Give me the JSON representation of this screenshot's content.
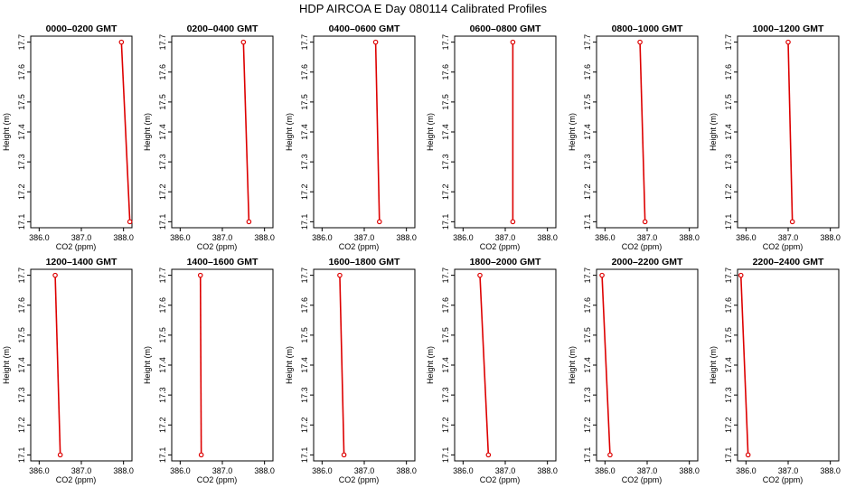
{
  "title": "HDP AIRCOA E  Day 080114  Calibrated Profiles",
  "colors": {
    "profile": "#dd0000",
    "axis": "#000000",
    "background": "#ffffff"
  },
  "chart_data": [
    {
      "type": "line",
      "title": "0000–0200 GMT",
      "xlabel": "CO2 (ppm)",
      "ylabel": "Height (m)",
      "xlim": [
        385.8,
        388.2
      ],
      "ylim": [
        17.08,
        17.72
      ],
      "xticks": [
        386.0,
        387.0,
        388.0
      ],
      "xtick_labels": [
        "386.0",
        "387.0",
        "388.0"
      ],
      "yticks": [
        17.1,
        17.2,
        17.3,
        17.4,
        17.5,
        17.6,
        17.7
      ],
      "ytick_labels": [
        "17.1",
        "17.2",
        "17.3",
        "17.4",
        "17.5",
        "17.6",
        "17.7"
      ],
      "grid": false,
      "series": [
        {
          "x": [
            387.95,
            388.15
          ],
          "y": [
            17.7,
            17.1
          ]
        }
      ]
    },
    {
      "type": "line",
      "title": "0200–0400 GMT",
      "xlabel": "CO2 (ppm)",
      "ylabel": "Height (m)",
      "xlim": [
        385.8,
        388.2
      ],
      "ylim": [
        17.08,
        17.72
      ],
      "xticks": [
        386.0,
        387.0,
        388.0
      ],
      "xtick_labels": [
        "386.0",
        "387.0",
        "388.0"
      ],
      "yticks": [
        17.1,
        17.2,
        17.3,
        17.4,
        17.5,
        17.6,
        17.7
      ],
      "ytick_labels": [
        "17.1",
        "17.2",
        "17.3",
        "17.4",
        "17.5",
        "17.6",
        "17.7"
      ],
      "grid": false,
      "series": [
        {
          "x": [
            387.5,
            387.63
          ],
          "y": [
            17.7,
            17.1
          ]
        }
      ]
    },
    {
      "type": "line",
      "title": "0400–0600 GMT",
      "xlabel": "CO2 (ppm)",
      "ylabel": "Height (m)",
      "xlim": [
        385.8,
        388.2
      ],
      "ylim": [
        17.08,
        17.72
      ],
      "xticks": [
        386.0,
        387.0,
        388.0
      ],
      "xtick_labels": [
        "386.0",
        "387.0",
        "388.0"
      ],
      "yticks": [
        17.1,
        17.2,
        17.3,
        17.4,
        17.5,
        17.6,
        17.7
      ],
      "ytick_labels": [
        "17.1",
        "17.2",
        "17.3",
        "17.4",
        "17.5",
        "17.6",
        "17.7"
      ],
      "grid": false,
      "series": [
        {
          "x": [
            387.27,
            387.36
          ],
          "y": [
            17.7,
            17.1
          ]
        }
      ]
    },
    {
      "type": "line",
      "title": "0600–0800 GMT",
      "xlabel": "CO2 (ppm)",
      "ylabel": "Height (m)",
      "xlim": [
        385.8,
        388.2
      ],
      "ylim": [
        17.08,
        17.72
      ],
      "xticks": [
        386.0,
        387.0,
        388.0
      ],
      "xtick_labels": [
        "386.0",
        "387.0",
        "388.0"
      ],
      "yticks": [
        17.1,
        17.2,
        17.3,
        17.4,
        17.5,
        17.6,
        17.7
      ],
      "ytick_labels": [
        "17.1",
        "17.2",
        "17.3",
        "17.4",
        "17.5",
        "17.6",
        "17.7"
      ],
      "grid": false,
      "series": [
        {
          "x": [
            387.18,
            387.18
          ],
          "y": [
            17.7,
            17.1
          ]
        }
      ]
    },
    {
      "type": "line",
      "title": "0800–1000 GMT",
      "xlabel": "CO2 (ppm)",
      "ylabel": "Height (m)",
      "xlim": [
        385.8,
        388.2
      ],
      "ylim": [
        17.08,
        17.72
      ],
      "xticks": [
        386.0,
        387.0,
        388.0
      ],
      "xtick_labels": [
        "386.0",
        "387.0",
        "388.0"
      ],
      "yticks": [
        17.1,
        17.2,
        17.3,
        17.4,
        17.5,
        17.6,
        17.7
      ],
      "ytick_labels": [
        "17.1",
        "17.2",
        "17.3",
        "17.4",
        "17.5",
        "17.6",
        "17.7"
      ],
      "grid": false,
      "series": [
        {
          "x": [
            386.83,
            386.95
          ],
          "y": [
            17.7,
            17.1
          ]
        }
      ]
    },
    {
      "type": "line",
      "title": "1000–1200 GMT",
      "xlabel": "CO2 (ppm)",
      "ylabel": "Height (m)",
      "xlim": [
        385.8,
        388.2
      ],
      "ylim": [
        17.08,
        17.72
      ],
      "xticks": [
        386.0,
        387.0,
        388.0
      ],
      "xtick_labels": [
        "386.0",
        "387.0",
        "388.0"
      ],
      "yticks": [
        17.1,
        17.2,
        17.3,
        17.4,
        17.5,
        17.6,
        17.7
      ],
      "ytick_labels": [
        "17.1",
        "17.2",
        "17.3",
        "17.4",
        "17.5",
        "17.6",
        "17.7"
      ],
      "grid": false,
      "series": [
        {
          "x": [
            387.0,
            387.1
          ],
          "y": [
            17.7,
            17.1
          ]
        }
      ]
    },
    {
      "type": "line",
      "title": "1200–1400 GMT",
      "xlabel": "CO2 (ppm)",
      "ylabel": "Height (m)",
      "xlim": [
        385.8,
        388.2
      ],
      "ylim": [
        17.08,
        17.72
      ],
      "xticks": [
        386.0,
        387.0,
        388.0
      ],
      "xtick_labels": [
        "386.0",
        "387.0",
        "388.0"
      ],
      "yticks": [
        17.1,
        17.2,
        17.3,
        17.4,
        17.5,
        17.6,
        17.7
      ],
      "ytick_labels": [
        "17.1",
        "17.2",
        "17.3",
        "17.4",
        "17.5",
        "17.6",
        "17.7"
      ],
      "grid": false,
      "series": [
        {
          "x": [
            386.38,
            386.5
          ],
          "y": [
            17.7,
            17.1
          ]
        }
      ]
    },
    {
      "type": "line",
      "title": "1400–1600 GMT",
      "xlabel": "CO2 (ppm)",
      "ylabel": "Height (m)",
      "xlim": [
        385.8,
        388.2
      ],
      "ylim": [
        17.08,
        17.72
      ],
      "xticks": [
        386.0,
        387.0,
        388.0
      ],
      "xtick_labels": [
        "386.0",
        "387.0",
        "388.0"
      ],
      "yticks": [
        17.1,
        17.2,
        17.3,
        17.4,
        17.5,
        17.6,
        17.7
      ],
      "ytick_labels": [
        "17.1",
        "17.2",
        "17.3",
        "17.4",
        "17.5",
        "17.6",
        "17.7"
      ],
      "grid": false,
      "series": [
        {
          "x": [
            386.48,
            386.5
          ],
          "y": [
            17.7,
            17.1
          ]
        }
      ]
    },
    {
      "type": "line",
      "title": "1600–1800 GMT",
      "xlabel": "CO2 (ppm)",
      "ylabel": "Height (m)",
      "xlim": [
        385.8,
        388.2
      ],
      "ylim": [
        17.08,
        17.72
      ],
      "xticks": [
        386.0,
        387.0,
        388.0
      ],
      "xtick_labels": [
        "386.0",
        "387.0",
        "388.0"
      ],
      "yticks": [
        17.1,
        17.2,
        17.3,
        17.4,
        17.5,
        17.6,
        17.7
      ],
      "ytick_labels": [
        "17.1",
        "17.2",
        "17.3",
        "17.4",
        "17.5",
        "17.6",
        "17.7"
      ],
      "grid": false,
      "series": [
        {
          "x": [
            386.42,
            386.52
          ],
          "y": [
            17.7,
            17.1
          ]
        }
      ]
    },
    {
      "type": "line",
      "title": "1800–2000 GMT",
      "xlabel": "CO2 (ppm)",
      "ylabel": "Height (m)",
      "xlim": [
        385.8,
        388.2
      ],
      "ylim": [
        17.08,
        17.72
      ],
      "xticks": [
        386.0,
        387.0,
        388.0
      ],
      "xtick_labels": [
        "386.0",
        "387.0",
        "388.0"
      ],
      "yticks": [
        17.1,
        17.2,
        17.3,
        17.4,
        17.5,
        17.6,
        17.7
      ],
      "ytick_labels": [
        "17.1",
        "17.2",
        "17.3",
        "17.4",
        "17.5",
        "17.6",
        "17.7"
      ],
      "grid": false,
      "series": [
        {
          "x": [
            386.4,
            386.6
          ],
          "y": [
            17.7,
            17.1
          ]
        }
      ]
    },
    {
      "type": "line",
      "title": "2000–2200 GMT",
      "xlabel": "CO2 (ppm)",
      "ylabel": "Height (m)",
      "xlim": [
        385.8,
        388.2
      ],
      "ylim": [
        17.08,
        17.72
      ],
      "xticks": [
        386.0,
        387.0,
        388.0
      ],
      "xtick_labels": [
        "386.0",
        "387.0",
        "388.0"
      ],
      "yticks": [
        17.1,
        17.2,
        17.3,
        17.4,
        17.5,
        17.6,
        17.7
      ],
      "ytick_labels": [
        "17.1",
        "17.2",
        "17.3",
        "17.4",
        "17.5",
        "17.6",
        "17.7"
      ],
      "grid": false,
      "series": [
        {
          "x": [
            385.93,
            386.12
          ],
          "y": [
            17.7,
            17.1
          ]
        }
      ]
    },
    {
      "type": "line",
      "title": "2200–2400 GMT",
      "xlabel": "CO2 (ppm)",
      "ylabel": "Height (m)",
      "xlim": [
        385.8,
        388.2
      ],
      "ylim": [
        17.08,
        17.72
      ],
      "xticks": [
        386.0,
        387.0,
        388.0
      ],
      "xtick_labels": [
        "386.0",
        "387.0",
        "388.0"
      ],
      "yticks": [
        17.1,
        17.2,
        17.3,
        17.4,
        17.5,
        17.6,
        17.7
      ],
      "ytick_labels": [
        "17.1",
        "17.2",
        "17.3",
        "17.4",
        "17.5",
        "17.6",
        "17.7"
      ],
      "grid": false,
      "series": [
        {
          "x": [
            385.88,
            386.05
          ],
          "y": [
            17.7,
            17.1
          ]
        }
      ]
    }
  ]
}
